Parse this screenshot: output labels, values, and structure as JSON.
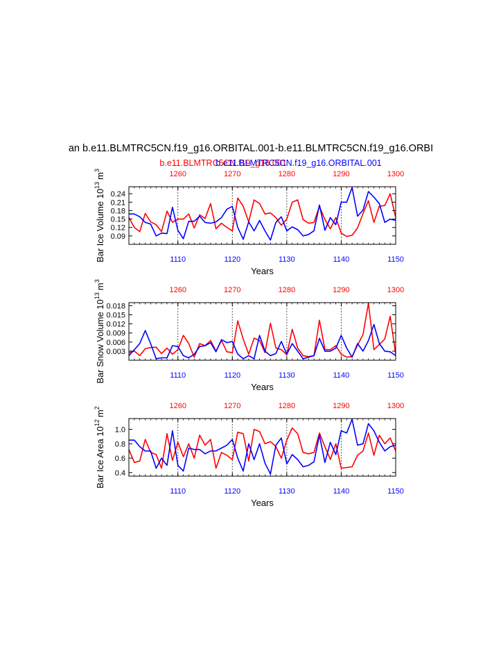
{
  "figure": {
    "main_title": "an b.e11.BLMTRC5CN.f19_g16.ORBITAL.001-b.e11.BLMTRC5CN.f19_g16.ORBI",
    "legend_red": "b.e11.BLMTRC5CN.f19_g16.001",
    "legend_blue": "b.e11.BLMTRC5CN.f19_g16.ORBITAL.001",
    "colors": {
      "red": "#ff0000",
      "blue": "#0000ff",
      "axis": "#000000"
    }
  },
  "chart_data": [
    {
      "type": "line",
      "ylabel": "Bar Ice Volume 10",
      "ylabel_exp": "13",
      "ylabel_unit": "m",
      "ylabel_unit_exp": "3",
      "xlabel": "Years",
      "yticks": [
        0.09,
        0.12,
        0.15,
        0.18,
        0.21,
        0.24
      ],
      "ytick_labels": [
        "0.09",
        "0.12",
        "0.15",
        "0.18",
        "0.21",
        "0.24"
      ],
      "ylim": [
        0.06,
        0.265
      ],
      "bottom_xlim": [
        1101,
        1150
      ],
      "bottom_ticks": [
        1110,
        1120,
        1130,
        1140,
        1150
      ],
      "bottom_tick_labels": [
        "1110",
        "1120",
        "1130",
        "1140",
        "1150"
      ],
      "top_xlim": [
        1251,
        1300
      ],
      "top_ticks": [
        1260,
        1270,
        1280,
        1290,
        1300
      ],
      "top_tick_labels": [
        "1260",
        "1270",
        "1280",
        "1290",
        "1300"
      ],
      "series": [
        {
          "name": "b.e11.BLMTRC5CN.f19_g16.001",
          "color": "#ff0000",
          "values": [
            0.155,
            0.12,
            0.105,
            0.17,
            0.14,
            0.13,
            0.105,
            0.178,
            0.138,
            0.15,
            0.15,
            0.168,
            0.118,
            0.165,
            0.152,
            0.205,
            0.115,
            0.135,
            0.12,
            0.108,
            0.225,
            0.195,
            0.14,
            0.218,
            0.205,
            0.168,
            0.172,
            0.155,
            0.128,
            0.15,
            0.21,
            0.218,
            0.148,
            0.135,
            0.138,
            0.195,
            0.148,
            0.115,
            0.155,
            0.1,
            0.088,
            0.092,
            0.118,
            0.17,
            0.215,
            0.138,
            0.195,
            0.198,
            0.24,
            0.155
          ]
        },
        {
          "name": "b.e11.BLMTRC5CN.f19_g16.ORBITAL.001",
          "color": "#0000ff",
          "values": [
            0.168,
            0.168,
            0.158,
            0.138,
            0.132,
            0.09,
            0.1,
            0.098,
            0.192,
            0.11,
            0.08,
            0.142,
            0.142,
            0.16,
            0.138,
            0.135,
            0.14,
            0.155,
            0.185,
            0.195,
            0.12,
            0.078,
            0.14,
            0.108,
            0.145,
            0.108,
            0.075,
            0.138,
            0.158,
            0.108,
            0.122,
            0.112,
            0.09,
            0.095,
            0.108,
            0.2,
            0.11,
            0.155,
            0.13,
            0.21,
            0.21,
            0.262,
            0.16,
            0.182,
            0.248,
            0.228,
            0.205,
            0.138,
            0.15,
            0.145
          ]
        }
      ]
    },
    {
      "type": "line",
      "ylabel": "Bar Snow Volume 10",
      "ylabel_exp": "13",
      "ylabel_unit": "m",
      "ylabel_unit_exp": "3",
      "xlabel": "Years",
      "yticks": [
        0.003,
        0.006,
        0.009,
        0.012,
        0.015,
        0.018
      ],
      "ytick_labels": [
        "0.003",
        "0.006",
        "0.009",
        "0.012",
        "0.015",
        "0.018"
      ],
      "ylim": [
        0.0,
        0.019
      ],
      "bottom_xlim": [
        1101,
        1150
      ],
      "bottom_ticks": [
        1110,
        1120,
        1130,
        1140,
        1150
      ],
      "bottom_tick_labels": [
        "1110",
        "1120",
        "1130",
        "1140",
        "1150"
      ],
      "top_xlim": [
        1251,
        1300
      ],
      "top_ticks": [
        1260,
        1270,
        1280,
        1290,
        1300
      ],
      "top_tick_labels": [
        "1260",
        "1270",
        "1280",
        "1290",
        "1300"
      ],
      "series": [
        {
          "name": "b.e11.BLMTRC5CN.f19_g16.001",
          "color": "#ff0000",
          "values": [
            0.0025,
            0.003,
            0.0015,
            0.0038,
            0.0042,
            0.0043,
            0.0022,
            0.004,
            0.002,
            0.0035,
            0.0082,
            0.0055,
            0.001,
            0.0055,
            0.0048,
            0.0065,
            0.003,
            0.0065,
            0.0028,
            0.0025,
            0.013,
            0.007,
            0.002,
            0.0073,
            0.0065,
            0.0025,
            0.0122,
            0.004,
            0.0035,
            0.0018,
            0.0102,
            0.004,
            0.0015,
            0.0012,
            0.0015,
            0.0132,
            0.0035,
            0.0035,
            0.0048,
            0.002,
            0.001,
            0.0012,
            0.005,
            0.0085,
            0.0188,
            0.0035,
            0.0052,
            0.007,
            0.0145,
            0.002
          ]
        },
        {
          "name": "b.e11.BLMTRC5CN.f19_g16.ORBITAL.001",
          "color": "#0000ff",
          "values": [
            0.0015,
            0.0035,
            0.0055,
            0.0098,
            0.0055,
            0.0005,
            0.0008,
            0.0008,
            0.0048,
            0.0045,
            0.0015,
            0.0008,
            0.002,
            0.0045,
            0.0048,
            0.0058,
            0.0028,
            0.0068,
            0.0058,
            0.0062,
            0.002,
            0.0005,
            0.0015,
            0.0005,
            0.0082,
            0.003,
            0.0015,
            0.0022,
            0.0062,
            0.002,
            0.0055,
            0.003,
            0.0005,
            0.001,
            0.0015,
            0.0072,
            0.003,
            0.003,
            0.004,
            0.0082,
            0.004,
            0.001,
            0.0055,
            0.003,
            0.0065,
            0.0118,
            0.0055,
            0.003,
            0.0028,
            0.0015
          ]
        }
      ]
    },
    {
      "type": "line",
      "ylabel": "Bar Ice Area 10",
      "ylabel_exp": "12",
      "ylabel_unit": "m",
      "ylabel_unit_exp": "2",
      "xlabel": "Years",
      "yticks": [
        0.4,
        0.6,
        0.8,
        1.0
      ],
      "ytick_labels": [
        "0.4",
        "0.6",
        "0.8",
        "1.0"
      ],
      "ylim": [
        0.35,
        1.15
      ],
      "bottom_xlim": [
        1101,
        1150
      ],
      "bottom_ticks": [
        1110,
        1120,
        1130,
        1140,
        1150
      ],
      "bottom_tick_labels": [
        "1110",
        "1120",
        "1130",
        "1140",
        "1150"
      ],
      "top_xlim": [
        1251,
        1300
      ],
      "top_ticks": [
        1260,
        1270,
        1280,
        1290,
        1300
      ],
      "top_tick_labels": [
        "1260",
        "1270",
        "1280",
        "1290",
        "1300"
      ],
      "series": [
        {
          "name": "b.e11.BLMTRC5CN.f19_g16.001",
          "color": "#ff0000",
          "values": [
            0.72,
            0.54,
            0.56,
            0.86,
            0.68,
            0.65,
            0.46,
            0.94,
            0.57,
            0.82,
            0.62,
            0.8,
            0.6,
            0.92,
            0.78,
            0.86,
            0.46,
            0.68,
            0.64,
            0.58,
            0.96,
            0.94,
            0.56,
            1.0,
            0.97,
            0.8,
            0.83,
            0.76,
            0.6,
            0.85,
            1.02,
            0.94,
            0.68,
            0.66,
            0.68,
            0.95,
            0.76,
            0.58,
            0.8,
            0.46,
            0.47,
            0.48,
            0.64,
            0.7,
            0.95,
            0.64,
            0.92,
            0.8,
            0.88,
            0.7
          ]
        },
        {
          "name": "b.e11.BLMTRC5CN.f19_g16.ORBITAL.001",
          "color": "#0000ff",
          "values": [
            0.85,
            0.85,
            0.76,
            0.7,
            0.7,
            0.46,
            0.6,
            0.5,
            0.98,
            0.5,
            0.42,
            0.74,
            0.72,
            0.72,
            0.66,
            0.7,
            0.7,
            0.74,
            0.78,
            0.86,
            0.6,
            0.42,
            0.8,
            0.58,
            0.8,
            0.53,
            0.38,
            0.78,
            0.88,
            0.52,
            0.65,
            0.58,
            0.48,
            0.5,
            0.55,
            0.92,
            0.54,
            0.82,
            0.65,
            0.98,
            0.95,
            1.14,
            0.78,
            0.8,
            1.08,
            0.98,
            0.82,
            0.7,
            0.76,
            0.78
          ]
        }
      ]
    }
  ]
}
